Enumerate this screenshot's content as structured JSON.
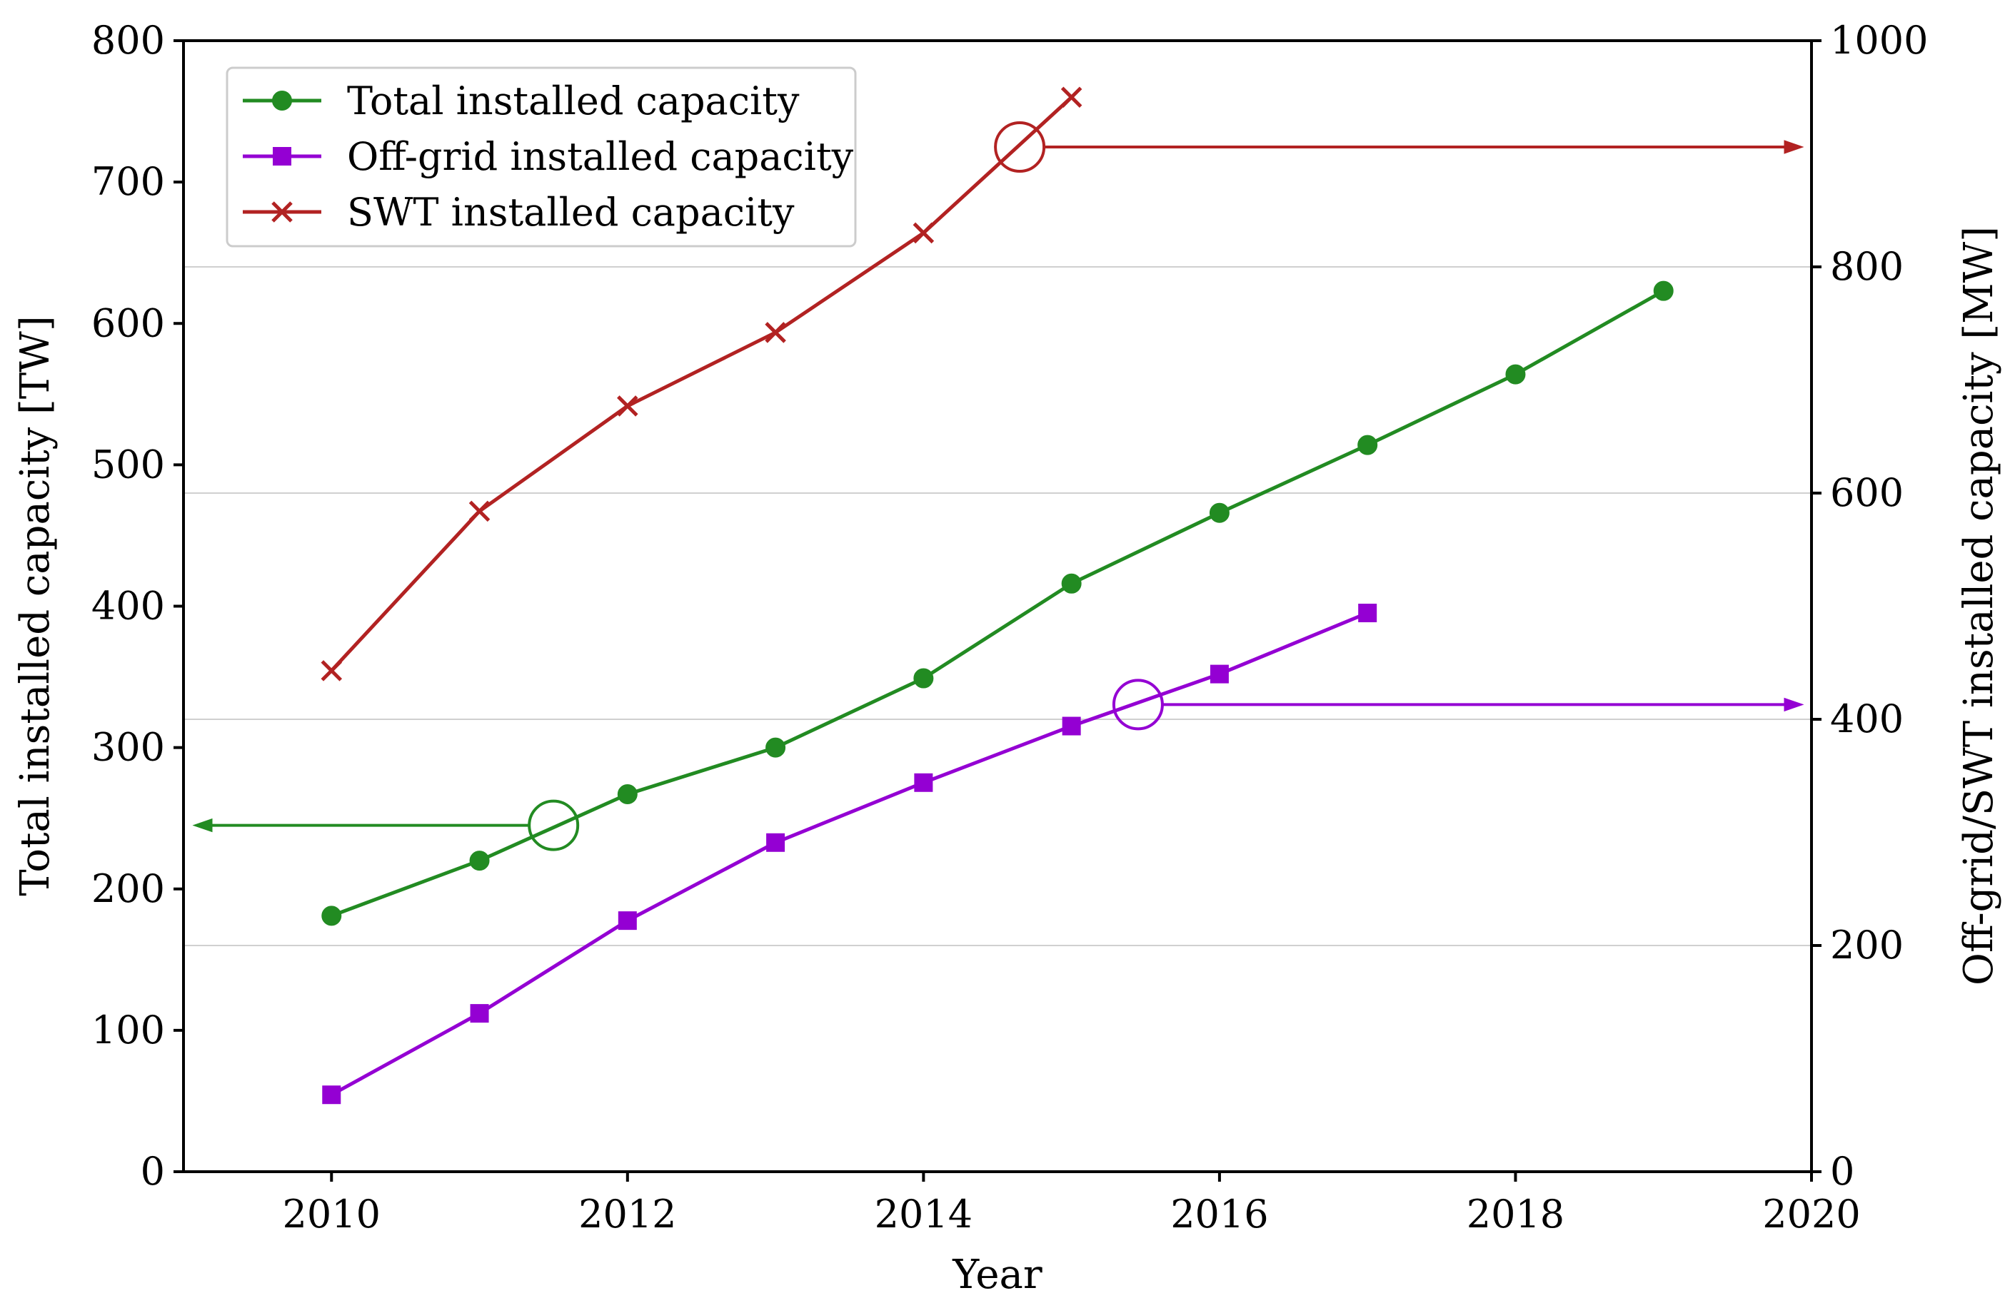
{
  "chart_data": {
    "type": "line",
    "title": "",
    "xlabel": "Year",
    "ylabel": "Total installed capacity [TW]",
    "y2label": "Off-grid/SWT installed capacity [MW]",
    "xlim": [
      2009,
      2020
    ],
    "ylim": [
      0,
      800
    ],
    "y2lim": [
      0,
      1000
    ],
    "x_ticks": [
      "2010",
      "2012",
      "2014",
      "2016",
      "2018",
      "2020"
    ],
    "y_ticks": [
      "0",
      "100",
      "200",
      "300",
      "400",
      "500",
      "600",
      "700",
      "800"
    ],
    "y2_ticks": [
      "0",
      "200",
      "400",
      "600",
      "800",
      "1000"
    ],
    "grid": "horizontal lines at right-axis ticks",
    "legend_position": "upper-left",
    "series": [
      {
        "name": "Total installed capacity",
        "axis": "left",
        "color": "#228b22",
        "marker": "circle",
        "x": [
          2010,
          2011,
          2012,
          2013,
          2014,
          2015,
          2016,
          2017,
          2018,
          2019
        ],
        "values": [
          181,
          220,
          267,
          300,
          349,
          416,
          466,
          514,
          564,
          623
        ]
      },
      {
        "name": "Off-grid installed capacity",
        "axis": "right",
        "color": "#9400d3",
        "marker": "square",
        "x": [
          2010,
          2011,
          2012,
          2013,
          2014,
          2015,
          2016,
          2017
        ],
        "values": [
          68,
          140,
          222,
          291,
          344,
          394,
          440,
          494
        ]
      },
      {
        "name": "SWT installed capacity",
        "axis": "right",
        "color": "#b22222",
        "marker": "x",
        "x": [
          2010,
          2011,
          2012,
          2013,
          2014,
          2015
        ],
        "values": [
          443,
          584,
          677,
          742,
          830,
          950
        ]
      }
    ],
    "annotations": [
      {
        "series": "Total installed capacity",
        "circle_at": [
          2011.5,
          245
        ],
        "points_to": "left axis",
        "color": "#228b22"
      },
      {
        "series": "Off-grid installed capacity",
        "circle_at": [
          2015.45,
          413
        ],
        "points_to": "right axis",
        "color": "#9400d3"
      },
      {
        "series": "SWT installed capacity",
        "circle_at": [
          2014.65,
          906
        ],
        "points_to": "right axis",
        "color": "#b22222"
      }
    ]
  }
}
